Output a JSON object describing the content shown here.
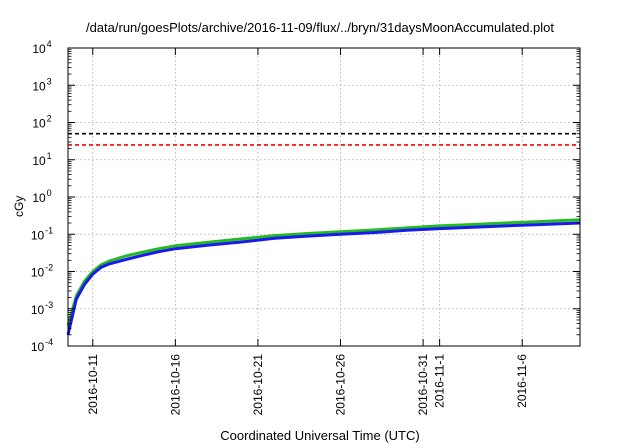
{
  "chart_data": {
    "type": "line",
    "title": "/data/run/goesPlots/archive/2016-11-09/flux/../bryn/31daysMoonAccumulated.plot",
    "xlabel": "Coordinated Universal Time (UTC)",
    "ylabel": "cGy",
    "y_scale": "log",
    "ylim": [
      0.0001,
      10000
    ],
    "yticks": [
      {
        "exp": "-4",
        "value": 0.0001
      },
      {
        "exp": "-3",
        "value": 0.001
      },
      {
        "exp": "-2",
        "value": 0.01
      },
      {
        "exp": "-1",
        "value": 0.1
      },
      {
        "exp": "0",
        "value": 1
      },
      {
        "exp": "1",
        "value": 10
      },
      {
        "exp": "2",
        "value": 100
      },
      {
        "exp": "3",
        "value": 1000
      },
      {
        "exp": "4",
        "value": 10000
      }
    ],
    "xlim": [
      "2016-10-09T12:00",
      "2016-11-09T12:00"
    ],
    "xticks": [
      {
        "label": "2016-10-11",
        "date": "2016-10-11"
      },
      {
        "label": "2016-10-16",
        "date": "2016-10-16"
      },
      {
        "label": "2016-10-21",
        "date": "2016-10-21"
      },
      {
        "label": "2016-10-26",
        "date": "2016-10-26"
      },
      {
        "label": "2016-10-31",
        "date": "2016-10-31"
      },
      {
        "label": "2016-11-1",
        "date": "2016-11-01"
      },
      {
        "label": "2016-11-6",
        "date": "2016-11-06"
      }
    ],
    "grid": true,
    "reference_lines": [
      {
        "value": 50,
        "color": "#000000",
        "style": "dashed"
      },
      {
        "value": 25,
        "color": "#ff0000",
        "style": "dashed"
      }
    ],
    "series": [
      {
        "color": "#22bb22",
        "points": [
          [
            "2016-10-09T12:00",
            0.00035
          ],
          [
            "2016-10-10T00:00",
            0.0022
          ],
          [
            "2016-10-10T12:00",
            0.0055
          ],
          [
            "2016-10-11T00:00",
            0.01
          ],
          [
            "2016-10-11T12:00",
            0.015
          ],
          [
            "2016-10-12T00:00",
            0.019
          ],
          [
            "2016-10-13T00:00",
            0.026
          ],
          [
            "2016-10-14T00:00",
            0.033
          ],
          [
            "2016-10-15T00:00",
            0.041
          ],
          [
            "2016-10-16T00:00",
            0.049
          ],
          [
            "2016-10-18T00:00",
            0.061
          ],
          [
            "2016-10-20T00:00",
            0.075
          ],
          [
            "2016-10-22T00:00",
            0.092
          ],
          [
            "2016-10-24T00:00",
            0.105
          ],
          [
            "2016-10-26T00:00",
            0.117
          ],
          [
            "2016-10-28T00:00",
            0.13
          ],
          [
            "2016-10-30T00:00",
            0.148
          ],
          [
            "2016-11-01T00:00",
            0.168
          ],
          [
            "2016-11-03T00:00",
            0.183
          ],
          [
            "2016-11-05T00:00",
            0.2
          ],
          [
            "2016-11-07T00:00",
            0.218
          ],
          [
            "2016-11-09T12:00",
            0.245
          ]
        ]
      },
      {
        "color": "#1a1aee",
        "points": [
          [
            "2016-10-09T12:00",
            0.0002
          ],
          [
            "2016-10-10T00:00",
            0.0018
          ],
          [
            "2016-10-10T12:00",
            0.0045
          ],
          [
            "2016-10-11T00:00",
            0.0085
          ],
          [
            "2016-10-11T12:00",
            0.013
          ],
          [
            "2016-10-12T00:00",
            0.016
          ],
          [
            "2016-10-13T00:00",
            0.021
          ],
          [
            "2016-10-14T00:00",
            0.027
          ],
          [
            "2016-10-15T00:00",
            0.034
          ],
          [
            "2016-10-16T00:00",
            0.041
          ],
          [
            "2016-10-18T00:00",
            0.051
          ],
          [
            "2016-10-20T00:00",
            0.062
          ],
          [
            "2016-10-22T00:00",
            0.078
          ],
          [
            "2016-10-24T00:00",
            0.089
          ],
          [
            "2016-10-26T00:00",
            0.1
          ],
          [
            "2016-10-28T00:00",
            0.111
          ],
          [
            "2016-10-30T00:00",
            0.128
          ],
          [
            "2016-11-01T00:00",
            0.142
          ],
          [
            "2016-11-03T00:00",
            0.155
          ],
          [
            "2016-11-05T00:00",
            0.168
          ],
          [
            "2016-11-07T00:00",
            0.182
          ],
          [
            "2016-11-09T12:00",
            0.2
          ]
        ]
      }
    ]
  }
}
